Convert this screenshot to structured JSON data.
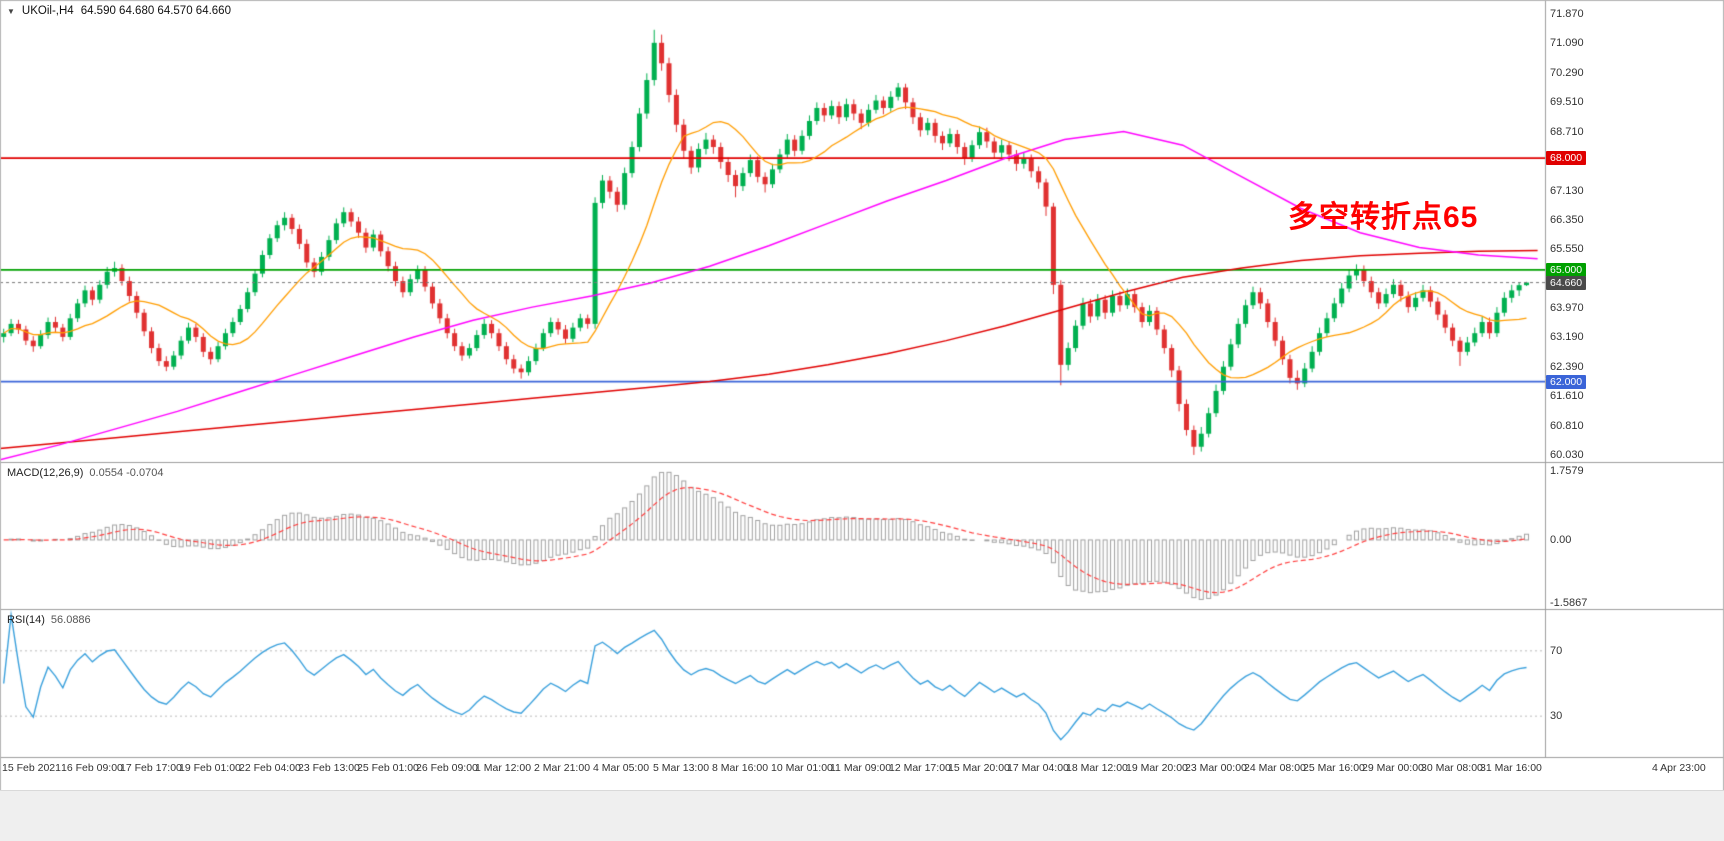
{
  "header": {
    "dropdown_icon": "▼",
    "symbol_timeframe": "UKOil-,H4",
    "ohlc_text": "64.590 64.680 64.570 64.660"
  },
  "annotation": {
    "text": "多空转折点65",
    "color": "#fe0000"
  },
  "indicators": {
    "macd": {
      "name": "MACD(12,26,9)",
      "values_text": "0.0554 -0.0704"
    },
    "rsi": {
      "name": "RSI(14)",
      "value_text": "56.0886"
    }
  },
  "chart_data": {
    "type": "candlestick",
    "symbol": "UKOil-",
    "timeframe": "H4",
    "x_labels": [
      "15 Feb 2021",
      "16 Feb 09:00",
      "17 Feb 17:00",
      "19 Feb 01:00",
      "22 Feb 04:00",
      "23 Feb 13:00",
      "25 Feb 01:00",
      "26 Feb 09:00",
      "1 Mar 12:00",
      "2 Mar 21:00",
      "4 Mar 05:00",
      "5 Mar 13:00",
      "8 Mar 16:00",
      "10 Mar 01:00",
      "11 Mar 09:00",
      "12 Mar 17:00",
      "15 Mar 20:00",
      "17 Mar 04:00",
      "18 Mar 12:00",
      "19 Mar 20:00",
      "23 Mar 00:00",
      "24 Mar 08:00",
      "25 Mar 16:00",
      "29 Mar 00:00",
      "30 Mar 08:00",
      "31 Mar 16:00",
      "4 Apr 23:00"
    ],
    "label_every_n_candles": 8,
    "total_slots": 209,
    "price_axis": {
      "domain": [
        59.84,
        72.25
      ],
      "ticks": [
        "71.870",
        "71.090",
        "70.290",
        "69.510",
        "68.710",
        "67.930",
        "67.130",
        "66.350",
        "65.550",
        "63.970",
        "63.190",
        "62.390",
        "61.610",
        "60.810",
        "60.030"
      ]
    },
    "hlines": [
      {
        "value": 68.0,
        "label": "68.000",
        "color": "#e00000"
      },
      {
        "value": 65.0,
        "label": "65.000",
        "color": "#00a000"
      },
      {
        "value": 62.0,
        "label": "62.000",
        "color": "#3a64d8"
      }
    ],
    "current_price": {
      "value": 64.66,
      "label": "64.660",
      "color": "#4a4a4a"
    },
    "colors": {
      "up": "#00b050",
      "down": "#e03131",
      "ma_fast": "#ff9d00",
      "ma_mid": "#ff00ff",
      "ma_slow": "#e00000",
      "macd_hist": "#a0a0a0",
      "macd_signal": "#ff4040",
      "rsi_line": "#3aa0dc"
    },
    "ma_fast_period": 13,
    "ma_mid_points": [
      59.9,
      60.3,
      60.75,
      61.2,
      61.7,
      62.2,
      62.7,
      63.2,
      63.65,
      64.0,
      64.3,
      64.65,
      65.1,
      65.65,
      66.25,
      66.85,
      67.4,
      68.0,
      68.5,
      68.72,
      68.35,
      67.5,
      66.65,
      66.0,
      65.6,
      65.4,
      65.3
    ],
    "ma_slow_points": [
      60.2,
      60.35,
      60.5,
      60.65,
      60.8,
      60.95,
      61.1,
      61.25,
      61.4,
      61.55,
      61.7,
      61.85,
      62.0,
      62.2,
      62.45,
      62.75,
      63.1,
      63.5,
      63.95,
      64.4,
      64.8,
      65.05,
      65.25,
      65.38,
      65.45,
      65.5,
      65.52
    ],
    "macd_axis": {
      "params": [
        12,
        26,
        9
      ],
      "domain": [
        -1.75,
        1.95
      ],
      "ticks": [
        {
          "v": 1.7579,
          "label": "1.7579"
        },
        {
          "v": 0,
          "label": "0.00"
        },
        {
          "v": -1.5867,
          "label": "-1.5867"
        }
      ]
    },
    "rsi_axis": {
      "period": 14,
      "domain": [
        5,
        95
      ],
      "levels": [
        70,
        30
      ],
      "ticks": [
        {
          "v": 70,
          "label": "70"
        },
        {
          "v": 30,
          "label": "30"
        }
      ]
    },
    "candles": [
      [
        63.2,
        63.42,
        63.05,
        63.3
      ],
      [
        63.3,
        63.68,
        63.22,
        63.55
      ],
      [
        63.55,
        63.66,
        63.28,
        63.4
      ],
      [
        63.4,
        63.5,
        62.98,
        63.1
      ],
      [
        63.1,
        63.22,
        62.8,
        62.95
      ],
      [
        62.95,
        63.38,
        62.88,
        63.25
      ],
      [
        63.25,
        63.72,
        63.15,
        63.6
      ],
      [
        63.6,
        63.74,
        63.32,
        63.45
      ],
      [
        63.45,
        63.55,
        63.08,
        63.2
      ],
      [
        63.2,
        63.82,
        63.12,
        63.7
      ],
      [
        63.7,
        64.22,
        63.6,
        64.1
      ],
      [
        64.1,
        64.58,
        64.0,
        64.45
      ],
      [
        64.45,
        64.55,
        64.05,
        64.2
      ],
      [
        64.2,
        64.72,
        64.1,
        64.6
      ],
      [
        64.6,
        65.08,
        64.5,
        64.95
      ],
      [
        64.95,
        65.22,
        64.82,
        65.05
      ],
      [
        65.05,
        65.15,
        64.58,
        64.7
      ],
      [
        64.7,
        64.82,
        64.15,
        64.3
      ],
      [
        64.3,
        64.42,
        63.7,
        63.85
      ],
      [
        63.85,
        63.95,
        63.22,
        63.35
      ],
      [
        63.35,
        63.46,
        62.76,
        62.9
      ],
      [
        62.9,
        63.02,
        62.42,
        62.55
      ],
      [
        62.55,
        62.68,
        62.28,
        62.4
      ],
      [
        62.4,
        62.82,
        62.32,
        62.7
      ],
      [
        62.7,
        63.22,
        62.6,
        63.1
      ],
      [
        63.1,
        63.58,
        63.02,
        63.45
      ],
      [
        63.45,
        63.55,
        63.06,
        63.2
      ],
      [
        63.2,
        63.3,
        62.66,
        62.8
      ],
      [
        62.8,
        62.92,
        62.46,
        62.6
      ],
      [
        62.6,
        63.06,
        62.52,
        62.95
      ],
      [
        62.95,
        63.42,
        62.86,
        63.3
      ],
      [
        63.3,
        63.72,
        63.2,
        63.6
      ],
      [
        63.6,
        64.06,
        63.52,
        63.95
      ],
      [
        63.95,
        64.52,
        63.86,
        64.4
      ],
      [
        64.4,
        65.02,
        64.3,
        64.9
      ],
      [
        64.9,
        65.52,
        64.8,
        65.4
      ],
      [
        65.4,
        65.96,
        65.3,
        65.85
      ],
      [
        65.85,
        66.32,
        65.75,
        66.2
      ],
      [
        66.2,
        66.55,
        66.06,
        66.4
      ],
      [
        66.4,
        66.5,
        65.96,
        66.1
      ],
      [
        66.1,
        66.22,
        65.56,
        65.7
      ],
      [
        65.7,
        65.82,
        65.06,
        65.2
      ],
      [
        65.2,
        65.32,
        64.8,
        64.95
      ],
      [
        64.95,
        65.48,
        64.85,
        65.35
      ],
      [
        65.35,
        65.92,
        65.25,
        65.8
      ],
      [
        65.8,
        66.38,
        65.7,
        66.25
      ],
      [
        66.25,
        66.68,
        66.15,
        66.55
      ],
      [
        66.55,
        66.65,
        66.16,
        66.3
      ],
      [
        66.3,
        66.42,
        65.86,
        66.0
      ],
      [
        66.0,
        66.12,
        65.46,
        65.6
      ],
      [
        65.6,
        66.08,
        65.5,
        65.95
      ],
      [
        65.95,
        66.05,
        65.36,
        65.5
      ],
      [
        65.5,
        65.62,
        64.96,
        65.1
      ],
      [
        65.1,
        65.22,
        64.56,
        64.7
      ],
      [
        64.7,
        64.82,
        64.26,
        64.4
      ],
      [
        64.4,
        64.88,
        64.3,
        64.75
      ],
      [
        64.75,
        65.12,
        64.65,
        65.0
      ],
      [
        65.0,
        65.1,
        64.42,
        64.55
      ],
      [
        64.55,
        64.66,
        63.96,
        64.1
      ],
      [
        64.1,
        64.22,
        63.56,
        63.7
      ],
      [
        63.7,
        63.82,
        63.16,
        63.3
      ],
      [
        63.3,
        63.42,
        62.82,
        62.95
      ],
      [
        62.95,
        63.06,
        62.56,
        62.7
      ],
      [
        62.7,
        63.02,
        62.62,
        62.9
      ],
      [
        62.9,
        63.38,
        62.82,
        63.25
      ],
      [
        63.25,
        63.68,
        63.15,
        63.55
      ],
      [
        63.55,
        63.65,
        63.16,
        63.3
      ],
      [
        63.3,
        63.42,
        62.82,
        62.95
      ],
      [
        62.95,
        63.06,
        62.46,
        62.6
      ],
      [
        62.6,
        62.72,
        62.22,
        62.35
      ],
      [
        62.35,
        62.46,
        62.08,
        62.25
      ],
      [
        62.25,
        62.68,
        62.16,
        62.55
      ],
      [
        62.55,
        63.02,
        62.45,
        62.9
      ],
      [
        62.9,
        63.42,
        62.82,
        63.3
      ],
      [
        63.3,
        63.72,
        63.2,
        63.6
      ],
      [
        63.6,
        63.7,
        63.26,
        63.4
      ],
      [
        63.4,
        63.52,
        63.02,
        63.15
      ],
      [
        63.15,
        63.58,
        63.06,
        63.45
      ],
      [
        63.45,
        63.82,
        63.35,
        63.7
      ],
      [
        63.7,
        63.8,
        63.42,
        63.55
      ],
      [
        63.55,
        66.95,
        63.42,
        66.8
      ],
      [
        66.8,
        67.55,
        66.65,
        67.4
      ],
      [
        67.4,
        67.52,
        66.92,
        67.1
      ],
      [
        67.1,
        67.22,
        66.56,
        66.75
      ],
      [
        66.75,
        67.75,
        66.62,
        67.6
      ],
      [
        67.6,
        68.45,
        67.48,
        68.3
      ],
      [
        68.3,
        69.35,
        68.18,
        69.2
      ],
      [
        69.2,
        70.28,
        69.06,
        70.1
      ],
      [
        70.1,
        71.45,
        69.95,
        71.1
      ],
      [
        71.1,
        71.32,
        70.35,
        70.55
      ],
      [
        70.55,
        70.7,
        69.5,
        69.7
      ],
      [
        69.7,
        69.85,
        68.7,
        68.9
      ],
      [
        68.9,
        69.05,
        68.0,
        68.2
      ],
      [
        68.2,
        68.32,
        67.58,
        67.75
      ],
      [
        67.75,
        68.4,
        67.62,
        68.25
      ],
      [
        68.25,
        68.68,
        68.1,
        68.5
      ],
      [
        68.5,
        68.62,
        68.12,
        68.3
      ],
      [
        68.3,
        68.42,
        67.72,
        67.9
      ],
      [
        67.9,
        68.02,
        67.36,
        67.55
      ],
      [
        67.55,
        67.68,
        66.95,
        67.25
      ],
      [
        67.25,
        67.75,
        67.12,
        67.6
      ],
      [
        67.6,
        68.1,
        67.5,
        67.95
      ],
      [
        67.95,
        68.05,
        67.35,
        67.5
      ],
      [
        67.5,
        67.62,
        67.08,
        67.3
      ],
      [
        67.3,
        67.85,
        67.2,
        67.7
      ],
      [
        67.7,
        68.25,
        67.6,
        68.1
      ],
      [
        68.1,
        68.65,
        68.0,
        68.5
      ],
      [
        68.5,
        68.62,
        68.05,
        68.2
      ],
      [
        68.2,
        68.75,
        68.1,
        68.6
      ],
      [
        68.6,
        69.15,
        68.5,
        69.0
      ],
      [
        69.0,
        69.5,
        68.9,
        69.35
      ],
      [
        69.35,
        69.48,
        68.98,
        69.15
      ],
      [
        69.15,
        69.55,
        69.05,
        69.4
      ],
      [
        69.4,
        69.52,
        68.92,
        69.1
      ],
      [
        69.1,
        69.6,
        69.0,
        69.45
      ],
      [
        69.45,
        69.58,
        69.02,
        69.2
      ],
      [
        69.2,
        69.32,
        68.78,
        68.95
      ],
      [
        68.95,
        69.45,
        68.85,
        69.3
      ],
      [
        69.3,
        69.7,
        69.2,
        69.55
      ],
      [
        69.55,
        69.66,
        69.18,
        69.35
      ],
      [
        69.35,
        69.8,
        69.25,
        69.65
      ],
      [
        69.65,
        70.02,
        69.55,
        69.9
      ],
      [
        69.9,
        70.0,
        69.32,
        69.5
      ],
      [
        69.5,
        69.62,
        68.92,
        69.1
      ],
      [
        69.1,
        69.22,
        68.58,
        68.75
      ],
      [
        68.75,
        69.08,
        68.62,
        68.95
      ],
      [
        68.95,
        69.06,
        68.42,
        68.6
      ],
      [
        68.6,
        68.72,
        68.22,
        68.4
      ],
      [
        68.4,
        68.8,
        68.3,
        68.65
      ],
      [
        68.65,
        68.76,
        68.12,
        68.3
      ],
      [
        68.3,
        68.42,
        67.82,
        68.0
      ],
      [
        68.0,
        68.48,
        67.9,
        68.35
      ],
      [
        68.35,
        68.85,
        68.25,
        68.7
      ],
      [
        68.7,
        68.82,
        68.28,
        68.45
      ],
      [
        68.45,
        68.56,
        67.98,
        68.15
      ],
      [
        68.15,
        68.5,
        68.02,
        68.35
      ],
      [
        68.35,
        68.46,
        67.92,
        68.1
      ],
      [
        68.1,
        68.22,
        67.66,
        67.85
      ],
      [
        67.85,
        68.15,
        67.72,
        68.0
      ],
      [
        68.0,
        68.1,
        67.48,
        67.65
      ],
      [
        67.65,
        67.78,
        67.18,
        67.35
      ],
      [
        67.35,
        67.45,
        66.45,
        66.7
      ],
      [
        66.7,
        66.8,
        64.35,
        64.6
      ],
      [
        64.6,
        64.72,
        61.9,
        62.45
      ],
      [
        62.45,
        63.05,
        62.3,
        62.9
      ],
      [
        62.9,
        63.65,
        62.8,
        63.5
      ],
      [
        63.5,
        64.25,
        63.4,
        64.1
      ],
      [
        64.1,
        64.22,
        63.58,
        63.75
      ],
      [
        63.75,
        64.35,
        63.65,
        64.2
      ],
      [
        64.2,
        64.32,
        63.68,
        63.85
      ],
      [
        63.85,
        64.45,
        63.75,
        64.3
      ],
      [
        64.3,
        64.42,
        63.88,
        64.05
      ],
      [
        64.05,
        64.5,
        63.95,
        64.35
      ],
      [
        64.35,
        64.46,
        63.85,
        64.0
      ],
      [
        64.0,
        64.12,
        63.45,
        63.6
      ],
      [
        63.6,
        64.05,
        63.5,
        63.9
      ],
      [
        63.9,
        64.0,
        63.25,
        63.4
      ],
      [
        63.4,
        63.52,
        62.75,
        62.9
      ],
      [
        62.9,
        63.0,
        62.12,
        62.3
      ],
      [
        62.3,
        62.42,
        61.2,
        61.4
      ],
      [
        61.4,
        61.52,
        60.55,
        60.7
      ],
      [
        60.7,
        60.82,
        60.03,
        60.25
      ],
      [
        60.25,
        60.78,
        60.12,
        60.6
      ],
      [
        60.6,
        61.3,
        60.5,
        61.15
      ],
      [
        61.15,
        61.92,
        61.05,
        61.75
      ],
      [
        61.75,
        62.55,
        61.65,
        62.4
      ],
      [
        62.4,
        63.15,
        62.3,
        63.0
      ],
      [
        63.0,
        63.7,
        62.9,
        63.55
      ],
      [
        63.55,
        64.2,
        63.45,
        64.05
      ],
      [
        64.05,
        64.55,
        63.95,
        64.4
      ],
      [
        64.4,
        64.52,
        63.95,
        64.1
      ],
      [
        64.1,
        64.22,
        63.45,
        63.6
      ],
      [
        63.6,
        63.72,
        62.95,
        63.1
      ],
      [
        63.1,
        63.22,
        62.45,
        62.6
      ],
      [
        62.6,
        62.72,
        61.95,
        62.1
      ],
      [
        62.1,
        62.3,
        61.78,
        61.95
      ],
      [
        61.95,
        62.5,
        61.85,
        62.35
      ],
      [
        62.35,
        62.95,
        62.25,
        62.8
      ],
      [
        62.8,
        63.45,
        62.7,
        63.3
      ],
      [
        63.3,
        63.85,
        63.2,
        63.7
      ],
      [
        63.7,
        64.25,
        63.6,
        64.1
      ],
      [
        64.1,
        64.65,
        64.0,
        64.5
      ],
      [
        64.5,
        65.0,
        64.4,
        64.85
      ],
      [
        64.85,
        65.15,
        64.72,
        65.0
      ],
      [
        65.0,
        65.12,
        64.55,
        64.7
      ],
      [
        64.7,
        64.82,
        64.25,
        64.4
      ],
      [
        64.4,
        64.52,
        63.95,
        64.1
      ],
      [
        64.1,
        64.5,
        64.0,
        64.35
      ],
      [
        64.35,
        64.75,
        64.25,
        64.6
      ],
      [
        64.6,
        64.72,
        64.15,
        64.3
      ],
      [
        64.3,
        64.42,
        63.85,
        64.0
      ],
      [
        64.0,
        64.4,
        63.9,
        64.25
      ],
      [
        64.25,
        64.6,
        64.15,
        64.45
      ],
      [
        64.45,
        64.56,
        64.0,
        64.15
      ],
      [
        64.15,
        64.26,
        63.65,
        63.8
      ],
      [
        63.8,
        63.92,
        63.3,
        63.45
      ],
      [
        63.45,
        63.56,
        62.95,
        63.1
      ],
      [
        63.1,
        63.2,
        62.42,
        62.8
      ],
      [
        62.8,
        63.2,
        62.7,
        63.05
      ],
      [
        63.05,
        63.45,
        62.95,
        63.3
      ],
      [
        63.3,
        63.75,
        63.2,
        63.6
      ],
      [
        63.6,
        63.72,
        63.15,
        63.3
      ],
      [
        63.3,
        64.0,
        63.2,
        63.85
      ],
      [
        63.85,
        64.4,
        63.75,
        64.25
      ],
      [
        64.25,
        64.6,
        64.12,
        64.45
      ],
      [
        64.45,
        64.66,
        64.3,
        64.59
      ],
      [
        64.59,
        64.68,
        64.57,
        64.66
      ]
    ]
  }
}
